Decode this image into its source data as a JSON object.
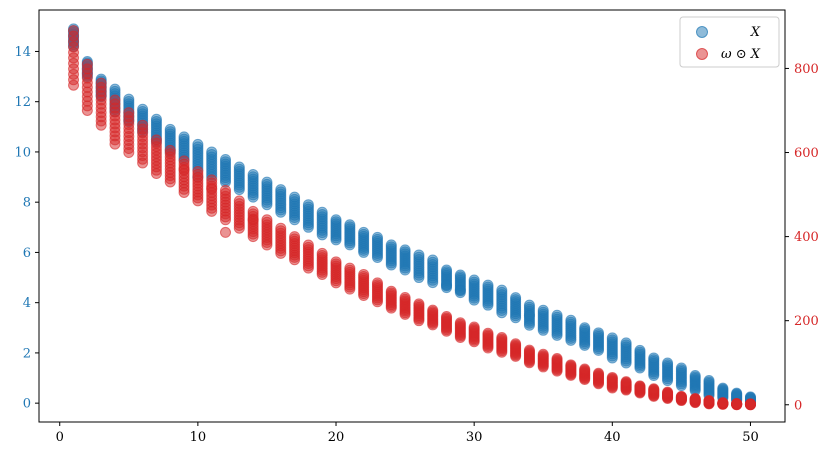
{
  "chart_data": {
    "type": "scatter",
    "title": "",
    "xlabel": "",
    "ylabel_left": "",
    "ylabel_right": "",
    "xlim": [
      -1.5,
      52.5
    ],
    "ylim_left": [
      -0.75,
      15.65
    ],
    "ylim_right": [
      -41,
      939
    ],
    "x_ticks": [
      0,
      10,
      20,
      30,
      40,
      50
    ],
    "y_left_ticks": [
      0,
      2,
      4,
      6,
      8,
      10,
      12,
      14
    ],
    "y_right_ticks": [
      0,
      200,
      400,
      600,
      800
    ],
    "grid": false,
    "legend": {
      "position": "top-right",
      "entries": [
        "X",
        "ω ⊙ X"
      ]
    },
    "colors": {
      "left_axis": "#1f77b4",
      "right_axis": "#d62728",
      "series_X": "#1f77b4",
      "series_wX": "#d62728"
    },
    "series": [
      {
        "name": "X",
        "axis": "left",
        "color": "#1f77b4",
        "x": [
          1,
          2,
          3,
          4,
          5,
          6,
          7,
          8,
          9,
          10,
          11,
          12,
          13,
          14,
          15,
          16,
          17,
          18,
          19,
          20,
          21,
          22,
          23,
          24,
          25,
          26,
          27,
          28,
          29,
          30,
          31,
          32,
          33,
          34,
          35,
          36,
          37,
          38,
          39,
          40,
          41,
          42,
          43,
          44,
          45,
          46,
          47,
          48,
          49,
          50
        ],
        "y_min": [
          14.2,
          13.0,
          12.2,
          11.6,
          11.2,
          10.8,
          10.4,
          10.0,
          9.7,
          9.3,
          9.0,
          8.8,
          8.5,
          8.2,
          7.9,
          7.6,
          7.3,
          7.0,
          6.7,
          6.5,
          6.3,
          6.0,
          5.8,
          5.5,
          5.3,
          5.0,
          4.8,
          4.6,
          4.4,
          4.1,
          3.9,
          3.6,
          3.4,
          3.1,
          2.9,
          2.7,
          2.5,
          2.3,
          2.1,
          1.8,
          1.6,
          1.4,
          1.1,
          0.9,
          0.7,
          0.5,
          0.3,
          0.2,
          0.1,
          0.0
        ],
        "y_max": [
          14.9,
          13.6,
          12.9,
          12.5,
          12.1,
          11.7,
          11.3,
          10.9,
          10.6,
          10.3,
          10.0,
          9.7,
          9.4,
          9.1,
          8.8,
          8.5,
          8.2,
          7.9,
          7.6,
          7.3,
          7.1,
          6.8,
          6.6,
          6.3,
          6.1,
          5.9,
          5.7,
          5.3,
          5.1,
          4.9,
          4.7,
          4.5,
          4.2,
          3.9,
          3.7,
          3.5,
          3.3,
          3.0,
          2.8,
          2.6,
          2.4,
          2.1,
          1.8,
          1.6,
          1.4,
          1.1,
          0.9,
          0.6,
          0.4,
          0.25
        ],
        "outliers": [
          [
            28,
            4.7
          ],
          [
            34,
            3.5
          ],
          [
            29,
            4.5
          ],
          [
            10,
            9.0
          ]
        ]
      },
      {
        "name": "ω ⊙ X",
        "axis": "right",
        "color": "#d62728",
        "x": [
          1,
          2,
          3,
          4,
          5,
          6,
          7,
          8,
          9,
          10,
          11,
          12,
          13,
          14,
          15,
          16,
          17,
          18,
          19,
          20,
          21,
          22,
          23,
          24,
          25,
          26,
          27,
          28,
          29,
          30,
          31,
          32,
          33,
          34,
          35,
          36,
          37,
          38,
          39,
          40,
          41,
          42,
          43,
          44,
          45,
          46,
          47,
          48,
          49,
          50
        ],
        "y_min": [
          760,
          700,
          665,
          630,
          600,
          575,
          550,
          530,
          505,
          485,
          460,
          440,
          420,
          400,
          380,
          360,
          345,
          325,
          310,
          290,
          275,
          260,
          245,
          230,
          215,
          200,
          190,
          175,
          160,
          150,
          135,
          125,
          115,
          100,
          90,
          80,
          70,
          60,
          50,
          40,
          35,
          28,
          20,
          15,
          10,
          5,
          2,
          1,
          0,
          0
        ],
        "y_max": [
          890,
          810,
          765,
          725,
          695,
          665,
          630,
          605,
          580,
          555,
          535,
          510,
          485,
          460,
          440,
          420,
          400,
          380,
          360,
          340,
          325,
          305,
          290,
          270,
          255,
          240,
          225,
          210,
          195,
          185,
          170,
          160,
          145,
          130,
          120,
          110,
          95,
          85,
          75,
          65,
          55,
          45,
          38,
          30,
          20,
          15,
          10,
          5,
          3,
          2
        ],
        "outliers": [
          [
            4,
            620
          ],
          [
            11,
            515
          ],
          [
            12,
            410
          ],
          [
            22,
            310
          ],
          [
            9,
            560
          ],
          [
            14,
            440
          ]
        ]
      }
    ]
  }
}
